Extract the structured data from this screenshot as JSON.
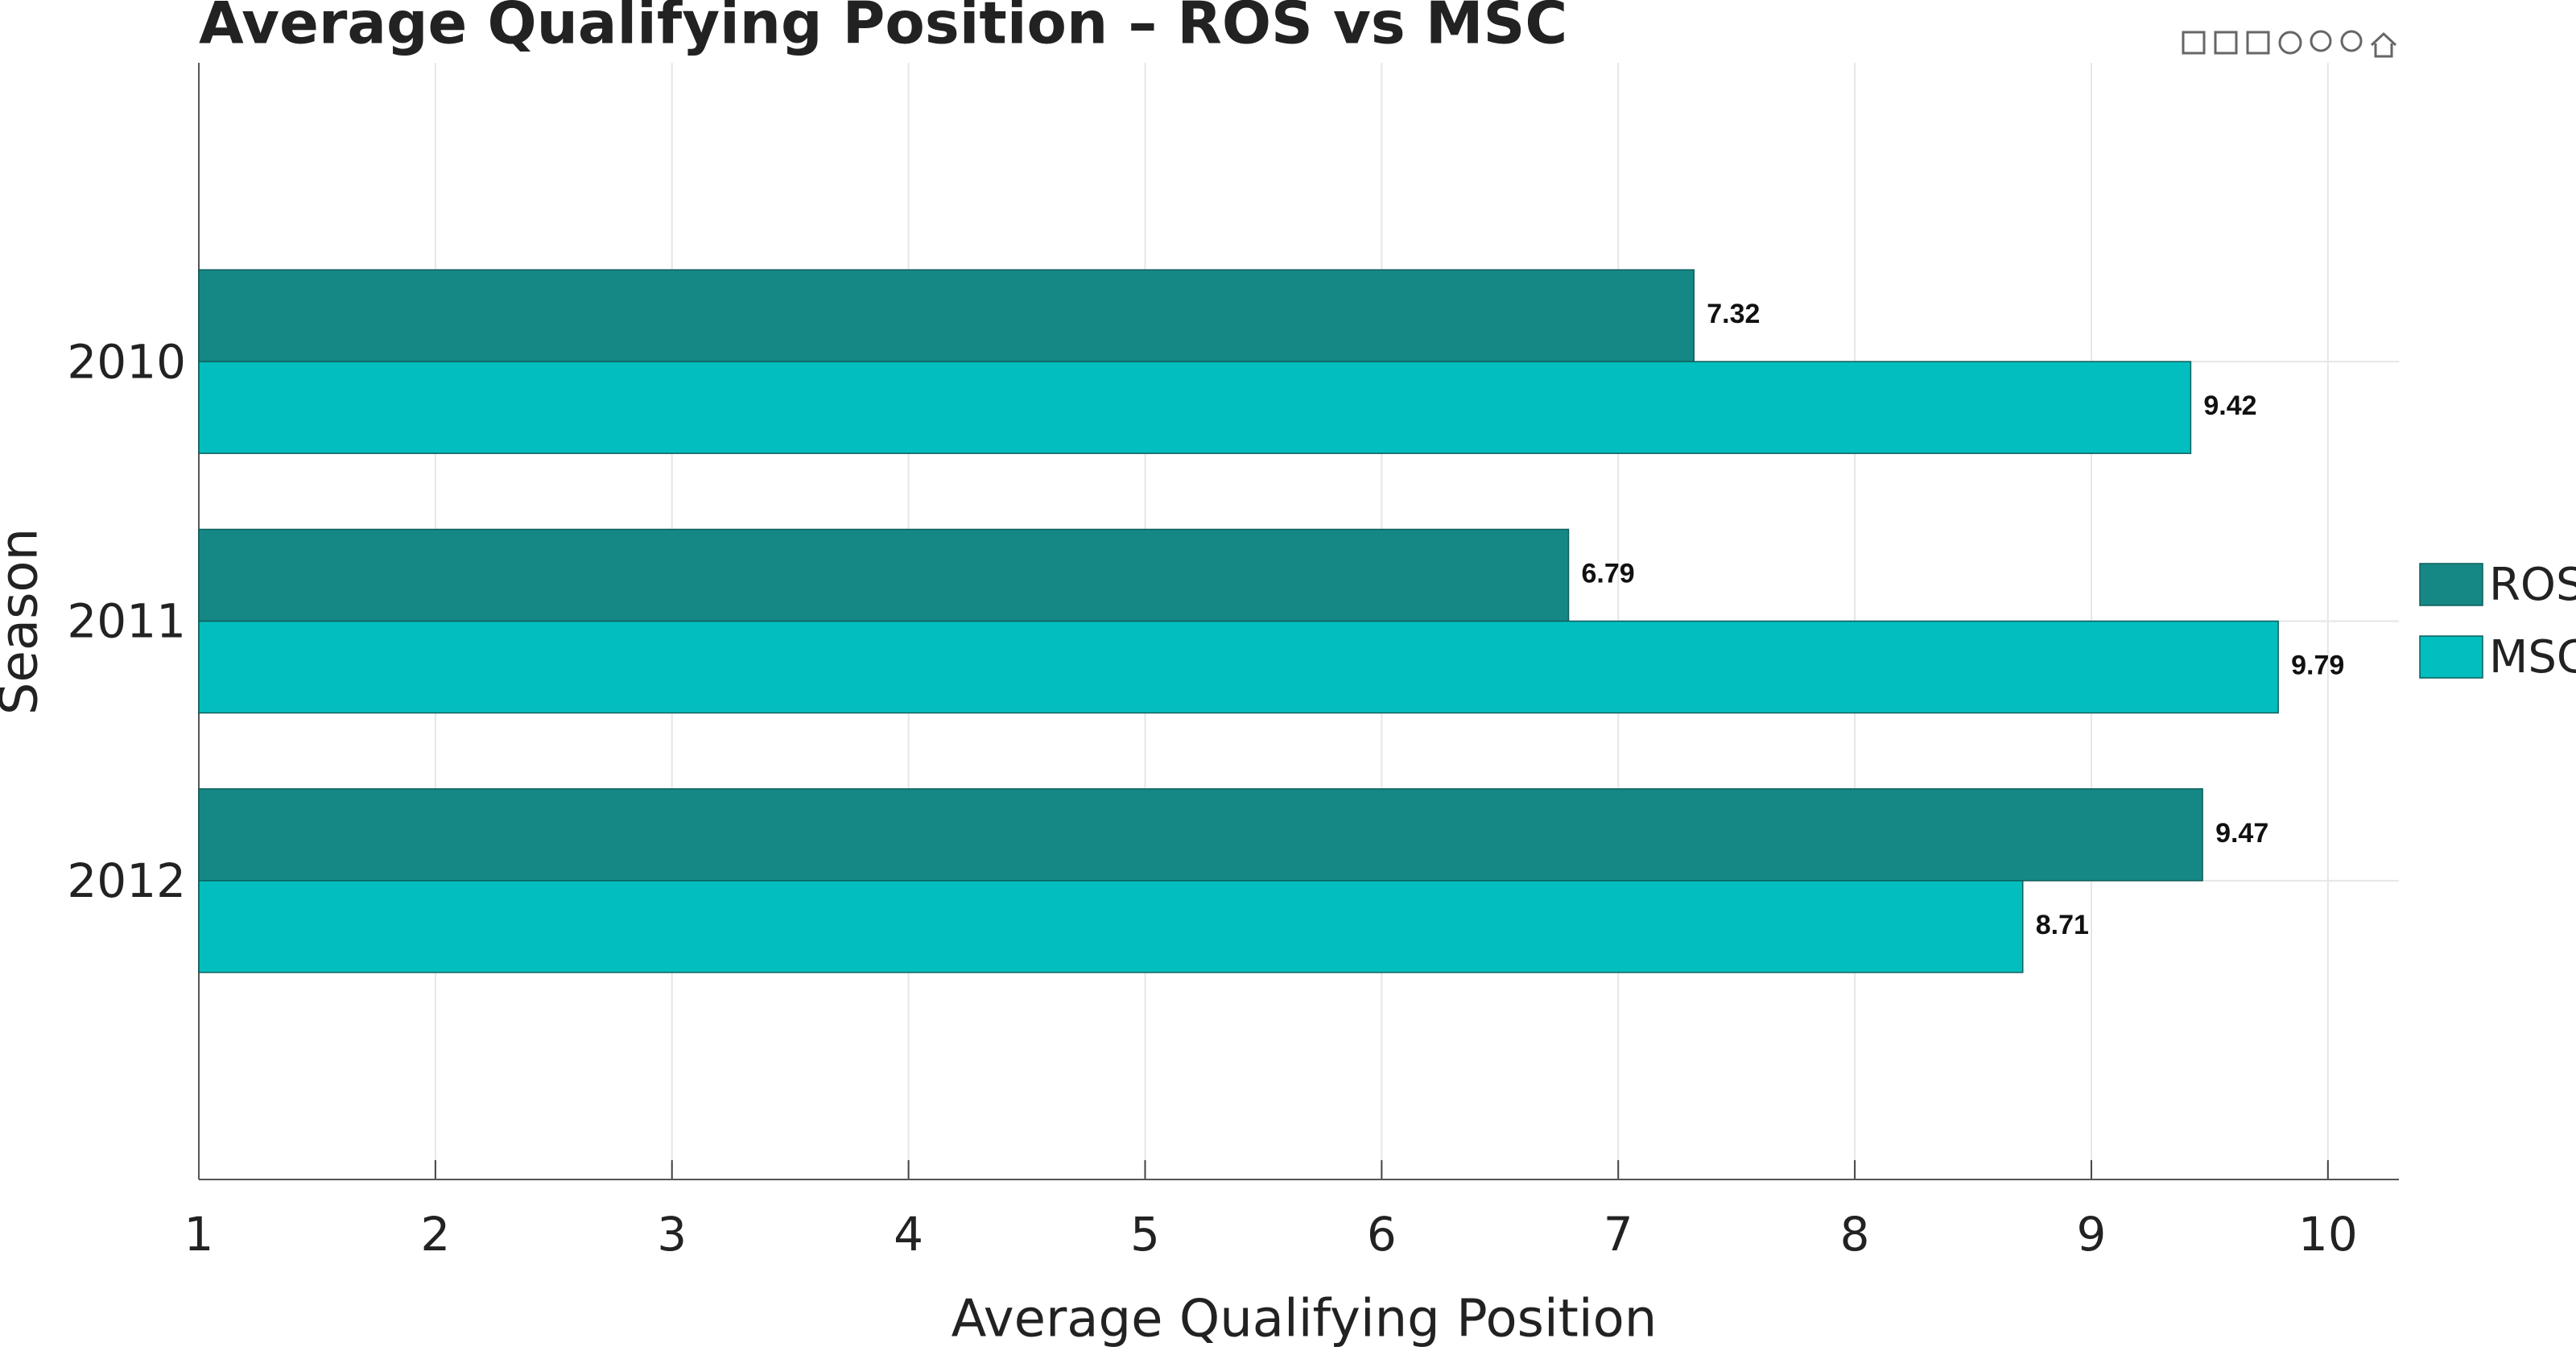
{
  "chart_data": {
    "type": "hbar",
    "title": "Average Qualifying Position – ROS vs MSC",
    "x_label": "Average Qualifying Position",
    "y_label": "Season",
    "categories": [
      "2010",
      "2011",
      "2012"
    ],
    "series": [
      {
        "name": "ROS",
        "color": "#158885",
        "values": [
          7.32,
          6.79,
          9.47
        ]
      },
      {
        "name": "MSC",
        "color": "#03bebe",
        "values": [
          9.42,
          9.79,
          8.71
        ]
      }
    ],
    "xlim": [
      1,
      10.3
    ],
    "xticks": [
      1,
      2,
      3,
      4,
      5,
      6,
      7,
      8,
      9,
      10
    ],
    "grid": true,
    "legend": "right"
  }
}
